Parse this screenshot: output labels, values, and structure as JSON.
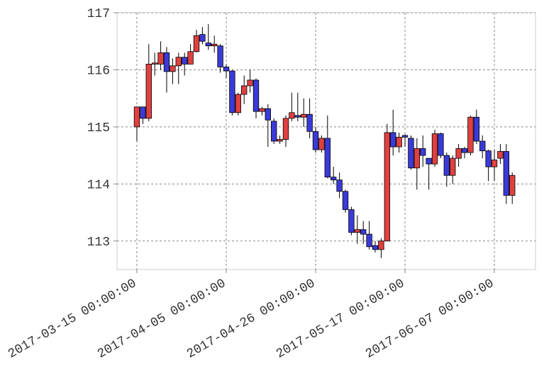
{
  "chart_data": {
    "type": "candlestick",
    "x": [
      0,
      1,
      2,
      3,
      4,
      5,
      6,
      7,
      8,
      9,
      10,
      11,
      12,
      13,
      14,
      15,
      16,
      17,
      18,
      19,
      20,
      21,
      22,
      23,
      24,
      25,
      26,
      27,
      28,
      29,
      30,
      31,
      32,
      33,
      34,
      35,
      36,
      37,
      38,
      39,
      40,
      41,
      42,
      43,
      44,
      45,
      46,
      47,
      48,
      49,
      50,
      51,
      52,
      53,
      54,
      55,
      56,
      57,
      58,
      59,
      60,
      61,
      62,
      63
    ],
    "open": [
      115.0,
      115.35,
      115.15,
      116.1,
      116.1,
      116.3,
      115.97,
      116.07,
      116.22,
      116.1,
      116.32,
      116.62,
      116.47,
      116.42,
      116.42,
      116.05,
      115.98,
      115.25,
      115.57,
      115.72,
      115.82,
      115.27,
      115.32,
      115.1,
      114.75,
      114.78,
      115.15,
      115.2,
      115.17,
      115.22,
      114.92,
      114.6,
      114.8,
      114.12,
      114.07,
      113.87,
      113.55,
      113.15,
      113.2,
      113.12,
      112.92,
      112.85,
      113.0,
      114.9,
      114.65,
      114.85,
      114.8,
      114.28,
      114.62,
      114.45,
      114.35,
      114.88,
      114.5,
      114.15,
      114.45,
      114.62,
      114.55,
      115.17,
      114.75,
      114.58,
      114.3,
      114.45,
      114.57,
      113.8
    ],
    "high": [
      115.35,
      115.35,
      116.45,
      116.3,
      116.5,
      116.4,
      116.2,
      116.3,
      116.3,
      116.45,
      116.7,
      116.75,
      116.8,
      116.6,
      116.45,
      116.1,
      116.0,
      115.6,
      115.9,
      116.0,
      115.85,
      115.35,
      115.4,
      115.15,
      114.85,
      115.2,
      115.6,
      115.6,
      115.5,
      115.5,
      115.0,
      114.85,
      115.2,
      114.3,
      114.2,
      113.9,
      113.6,
      113.45,
      113.35,
      113.35,
      113.0,
      113.05,
      115.05,
      115.3,
      114.9,
      114.87,
      114.85,
      114.8,
      114.85,
      114.45,
      114.95,
      114.9,
      114.55,
      114.5,
      114.7,
      114.65,
      115.2,
      115.3,
      114.85,
      114.6,
      114.6,
      114.7,
      114.7,
      114.2
    ],
    "low": [
      114.75,
      115.05,
      115.1,
      115.9,
      116.0,
      115.6,
      115.75,
      115.75,
      115.9,
      116.1,
      116.3,
      116.45,
      116.35,
      116.3,
      115.95,
      115.85,
      115.2,
      115.2,
      115.4,
      115.6,
      115.15,
      115.2,
      114.65,
      114.7,
      114.7,
      114.65,
      115.1,
      115.1,
      115.0,
      114.8,
      114.55,
      114.55,
      114.1,
      114.0,
      113.75,
      113.5,
      113.1,
      112.95,
      112.95,
      112.85,
      112.8,
      112.7,
      113.0,
      114.5,
      114.55,
      114.65,
      114.25,
      113.9,
      114.3,
      113.9,
      114.3,
      114.45,
      113.95,
      114.0,
      114.3,
      114.45,
      114.5,
      114.7,
      114.45,
      114.05,
      114.05,
      114.35,
      113.65,
      113.65
    ],
    "close": [
      115.35,
      115.15,
      116.1,
      116.12,
      116.3,
      115.97,
      116.07,
      116.22,
      116.1,
      116.32,
      116.6,
      116.5,
      116.42,
      116.45,
      116.05,
      115.98,
      115.25,
      115.57,
      115.72,
      115.82,
      115.27,
      115.32,
      115.12,
      114.75,
      114.78,
      115.15,
      115.25,
      115.17,
      115.22,
      114.92,
      114.6,
      114.8,
      114.12,
      114.07,
      113.87,
      113.55,
      113.15,
      113.2,
      113.12,
      112.9,
      112.85,
      113.0,
      114.9,
      114.65,
      114.82,
      114.82,
      114.28,
      114.62,
      114.5,
      114.35,
      114.88,
      114.5,
      114.15,
      114.45,
      114.62,
      114.55,
      115.17,
      114.75,
      114.58,
      114.3,
      114.42,
      114.57,
      113.8,
      114.15
    ],
    "colorup": "#e04040",
    "colordown": "#3a3ad8",
    "xlim": [
      -3.33,
      66.9
    ],
    "xticks": [
      {
        "value": 0,
        "label": "2017-03-15 00:00:00"
      },
      {
        "value": 15,
        "label": "2017-04-05 00:00:00"
      },
      {
        "value": 30,
        "label": "2017-04-26 00:00:00"
      },
      {
        "value": 45,
        "label": "2017-05-17 00:00:00"
      },
      {
        "value": 60,
        "label": "2017-06-07 00:00:00"
      }
    ],
    "ylim": [
      112.5,
      117
    ],
    "yticks": [
      113,
      114,
      115,
      116,
      117
    ],
    "grid": true
  }
}
